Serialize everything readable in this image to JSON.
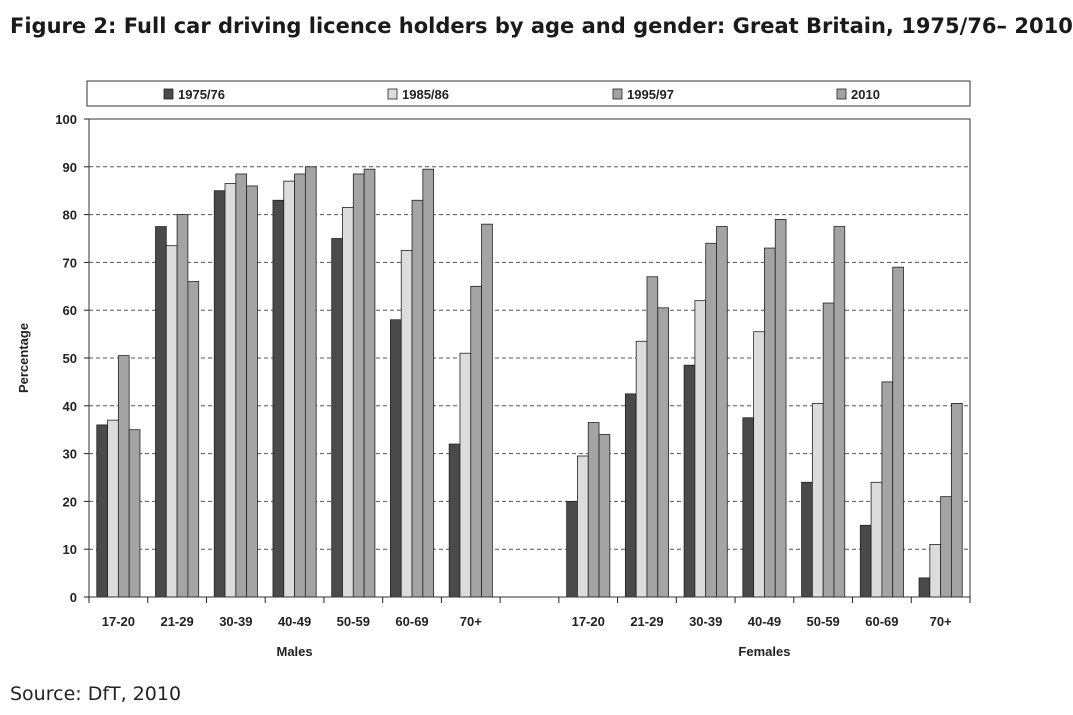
{
  "title": "Figure 2: Full car driving licence holders by age and gender: Great Britain, 1975/76– 2010",
  "source": "Source: DfT, 2010",
  "colors": {
    "1975/76": "#4a4a4a",
    "1985/86": "#dcdcdc",
    "1995/97": "#a4a4a4",
    "2010": "#a4a4a4",
    "gridline": "#555555",
    "bar_stroke": "#222222"
  },
  "chart_data": {
    "type": "bar",
    "ylabel": "Percentage",
    "ylim": [
      0,
      100
    ],
    "yticks": [
      0,
      10,
      20,
      30,
      40,
      50,
      60,
      70,
      80,
      90,
      100
    ],
    "grid": "horizontal dashed",
    "legend_position": "top",
    "groups": [
      {
        "label": "Males",
        "categories": [
          "17-20",
          "21-29",
          "30-39",
          "40-49",
          "50-59",
          "60-69",
          "70+"
        ],
        "series": [
          {
            "name": "1975/76",
            "values": [
              36,
              77.5,
              85,
              83,
              75,
              58,
              32
            ]
          },
          {
            "name": "1985/86",
            "values": [
              37,
              73.5,
              86.5,
              87,
              81.5,
              72.5,
              51
            ]
          },
          {
            "name": "1995/97",
            "values": [
              50.5,
              80,
              88.5,
              88.5,
              88.5,
              83,
              65
            ]
          },
          {
            "name": "2010",
            "values": [
              35,
              66,
              86,
              90,
              89.5,
              89.5,
              78
            ]
          }
        ]
      },
      {
        "label": "Females",
        "categories": [
          "17-20",
          "21-29",
          "30-39",
          "40-49",
          "50-59",
          "60-69",
          "70+"
        ],
        "series": [
          {
            "name": "1975/76",
            "values": [
              20,
              42.5,
              48.5,
              37.5,
              24,
              15,
              4
            ]
          },
          {
            "name": "1985/86",
            "values": [
              29.5,
              53.5,
              62,
              55.5,
              40.5,
              24,
              11
            ]
          },
          {
            "name": "1995/97",
            "values": [
              36.5,
              67,
              74,
              73,
              61.5,
              45,
              21
            ]
          },
          {
            "name": "2010",
            "values": [
              34,
              60.5,
              77.5,
              79,
              77.5,
              69,
              40.5
            ]
          }
        ]
      }
    ]
  }
}
